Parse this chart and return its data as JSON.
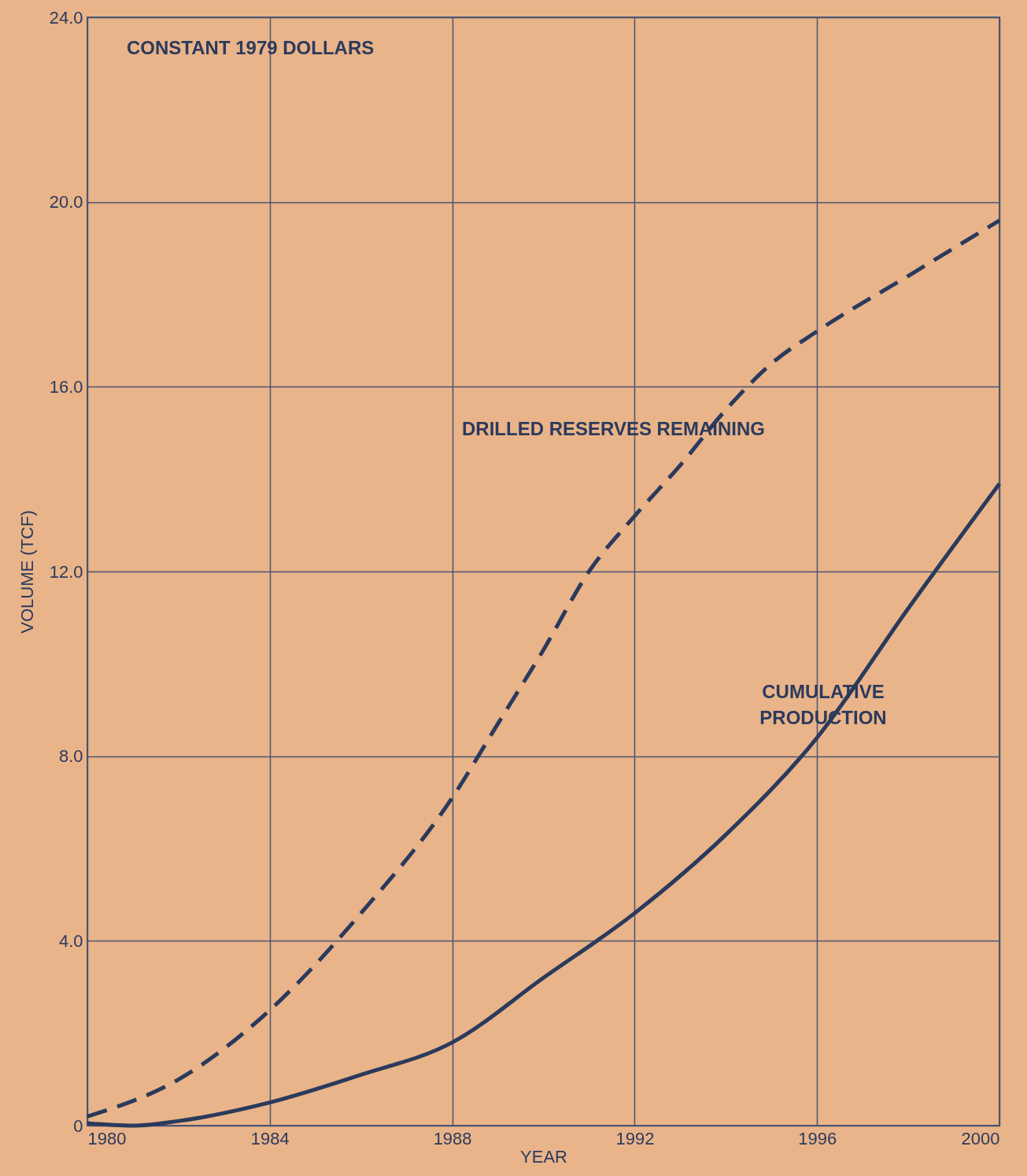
{
  "chart_data": {
    "type": "line",
    "xlabel": "YEAR",
    "ylabel": "VOLUME (TCF)",
    "annotations": [
      "CONSTANT 1979 DOLLARS"
    ],
    "series": [
      {
        "name": "DRILLED RESERVES REMAINING",
        "color": "#2b3a5c",
        "line_style": "dashed",
        "x": [
          1980,
          1982,
          1984,
          1986,
          1988,
          1989,
          1990,
          1991,
          1992,
          1993,
          1994,
          1995,
          1996,
          1998,
          2000
        ],
        "values": [
          0.2,
          1.0,
          2.5,
          4.6,
          7.1,
          8.7,
          10.3,
          12.0,
          13.2,
          14.3,
          15.5,
          16.5,
          17.2,
          18.4,
          19.6
        ]
      },
      {
        "name": "CUMULATIVE PRODUCTION",
        "color": "#2b3a5c",
        "line_style": "solid",
        "x": [
          1980,
          1981,
          1982,
          1984,
          1986,
          1988,
          1990,
          1992,
          1994,
          1996,
          1998,
          2000
        ],
        "values": [
          0.05,
          0.0,
          0.1,
          0.5,
          1.1,
          1.8,
          3.2,
          4.6,
          6.3,
          8.4,
          11.2,
          13.9
        ]
      }
    ],
    "xlim": [
      1980,
      2000
    ],
    "xticks": [
      1980,
      1984,
      1988,
      1992,
      1996,
      2000
    ],
    "ylim": [
      0,
      24
    ],
    "yticks": [
      0,
      {
        "value": 4,
        "label": "4.0"
      },
      {
        "value": 8,
        "label": "8.0"
      },
      {
        "value": 12,
        "label": "12.0"
      },
      {
        "value": 16,
        "label": "16.0"
      },
      {
        "value": 20,
        "label": "20.0"
      },
      {
        "value": 24,
        "label": "24.0"
      }
    ],
    "grid": true,
    "legend": false,
    "marker": "none"
  }
}
